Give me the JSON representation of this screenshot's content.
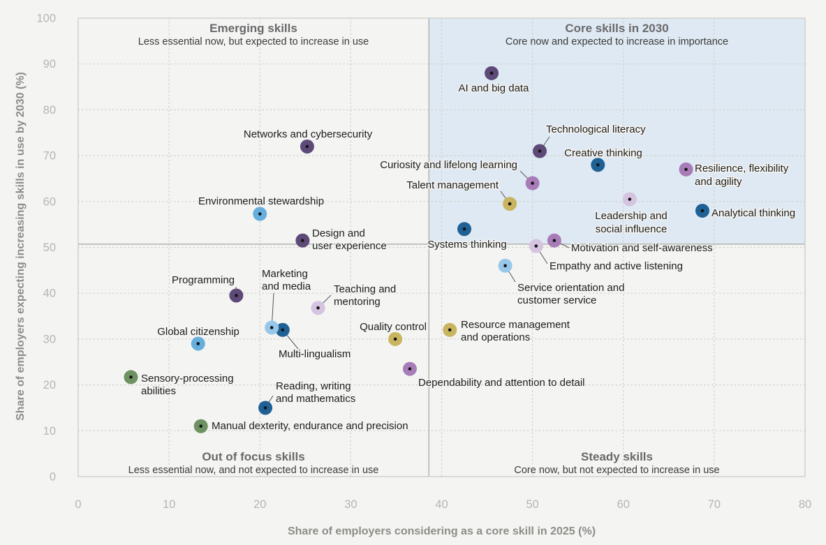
{
  "chart_data": {
    "type": "scatter",
    "xlabel": "Share of employers considering as a core skill in 2025 (%)",
    "ylabel": "Share of employers expecting increasing skills in use by 2030 (%)",
    "xlim": [
      0,
      80
    ],
    "ylim": [
      0,
      100
    ],
    "x_ticks": [
      0,
      10,
      20,
      30,
      40,
      50,
      60,
      70,
      80
    ],
    "y_ticks": [
      0,
      10,
      20,
      30,
      40,
      50,
      60,
      70,
      80,
      90,
      100
    ],
    "grid": "dotted",
    "legend_position": "none",
    "quadrant_divider": {
      "x": 38.6,
      "y": 50.7
    },
    "highlight_quadrant": "top-right",
    "highlight_color": "#dfe9f3",
    "quadrants": [
      {
        "id": "top-left",
        "title": "Emerging skills",
        "subtitle": "Less essential now, but expected to increase in use"
      },
      {
        "id": "top-right",
        "title": "Core skills in 2030",
        "subtitle": "Core now and expected to increase in importance"
      },
      {
        "id": "bottom-left",
        "title": "Out of focus skills",
        "subtitle": "Less essential now, and not expected to increase in use"
      },
      {
        "id": "bottom-right",
        "title": "Steady skills",
        "subtitle": "Core now, but not expected to increase in use"
      }
    ],
    "series": [
      {
        "name": "technology-skills",
        "color": "#5d4a78",
        "points": [
          {
            "id": "ai",
            "label": "AI and big data",
            "x": 45.5,
            "y": 88
          },
          {
            "id": "networks",
            "label": "Networks and cybersecurity",
            "x": 25.2,
            "y": 72
          },
          {
            "id": "techlit",
            "label": "Technological literacy",
            "x": 50.8,
            "y": 71
          },
          {
            "id": "design",
            "label": "Design and user experience",
            "x": 24.7,
            "y": 51.5
          },
          {
            "id": "programming",
            "label": "Programming",
            "x": 17.4,
            "y": 39.5
          }
        ]
      },
      {
        "name": "cognitive-skills",
        "color": "#1f6195",
        "points": [
          {
            "id": "creative",
            "label": "Creative thinking",
            "x": 57.2,
            "y": 68
          },
          {
            "id": "analytical",
            "label": "Analytical thinking",
            "x": 68.7,
            "y": 58
          },
          {
            "id": "systems",
            "label": "Systems thinking",
            "x": 42.5,
            "y": 54
          },
          {
            "id": "multiling",
            "label": "Multi-lingualism",
            "x": 22.5,
            "y": 32
          },
          {
            "id": "reading",
            "label": "Reading, writing and mathematics",
            "x": 20.6,
            "y": 15
          }
        ]
      },
      {
        "name": "self-efficacy",
        "color": "#a77cb8",
        "points": [
          {
            "id": "resilience",
            "label": "Resilience, flexibility and agility",
            "x": 66.9,
            "y": 67
          },
          {
            "id": "curiosity",
            "label": "Curiosity and lifelong learning",
            "x": 50,
            "y": 64
          },
          {
            "id": "motivation",
            "label": "Motivation and self-awareness",
            "x": 52.4,
            "y": 51.5
          },
          {
            "id": "depend",
            "label": "Dependability and attention to detail",
            "x": 36.5,
            "y": 23.5
          }
        ]
      },
      {
        "name": "working-with-others",
        "color": "#d5c3df",
        "points": [
          {
            "id": "leadership",
            "label": "Leadership and social influence",
            "x": 60.7,
            "y": 60.5
          },
          {
            "id": "empathy",
            "label": "Empathy and active listening",
            "x": 50.4,
            "y": 50.3
          },
          {
            "id": "teaching",
            "label": "Teaching and mentoring",
            "x": 26.4,
            "y": 36.8
          }
        ]
      },
      {
        "name": "management-skills",
        "color": "#c9b45f",
        "points": [
          {
            "id": "talent",
            "label": "Talent management",
            "x": 47.5,
            "y": 59.5
          },
          {
            "id": "quality",
            "label": "Quality control",
            "x": 34.9,
            "y": 30
          },
          {
            "id": "resource",
            "label": "Resource management and operations",
            "x": 40.9,
            "y": 32
          }
        ]
      },
      {
        "name": "ethics",
        "color": "#66aedd",
        "points": [
          {
            "id": "envsteward",
            "label": "Environmental stewardship",
            "x": 20,
            "y": 57.3
          },
          {
            "id": "globalcit",
            "label": "Global citizenship",
            "x": 13.2,
            "y": 29
          }
        ]
      },
      {
        "name": "engagement-skills",
        "color": "#97c7e9",
        "points": [
          {
            "id": "service",
            "label": "Service orientation and customer service",
            "x": 47,
            "y": 46
          },
          {
            "id": "marketing",
            "label": "Marketing and media",
            "x": 21.3,
            "y": 32.5
          }
        ]
      },
      {
        "name": "physical-abilities",
        "color": "#6d9160",
        "points": [
          {
            "id": "sensory",
            "label": "Sensory-processing abilities",
            "x": 5.8,
            "y": 21.7
          },
          {
            "id": "manual",
            "label": "Manual dexterity, endurance and precision",
            "x": 13.5,
            "y": 11
          }
        ]
      }
    ]
  }
}
